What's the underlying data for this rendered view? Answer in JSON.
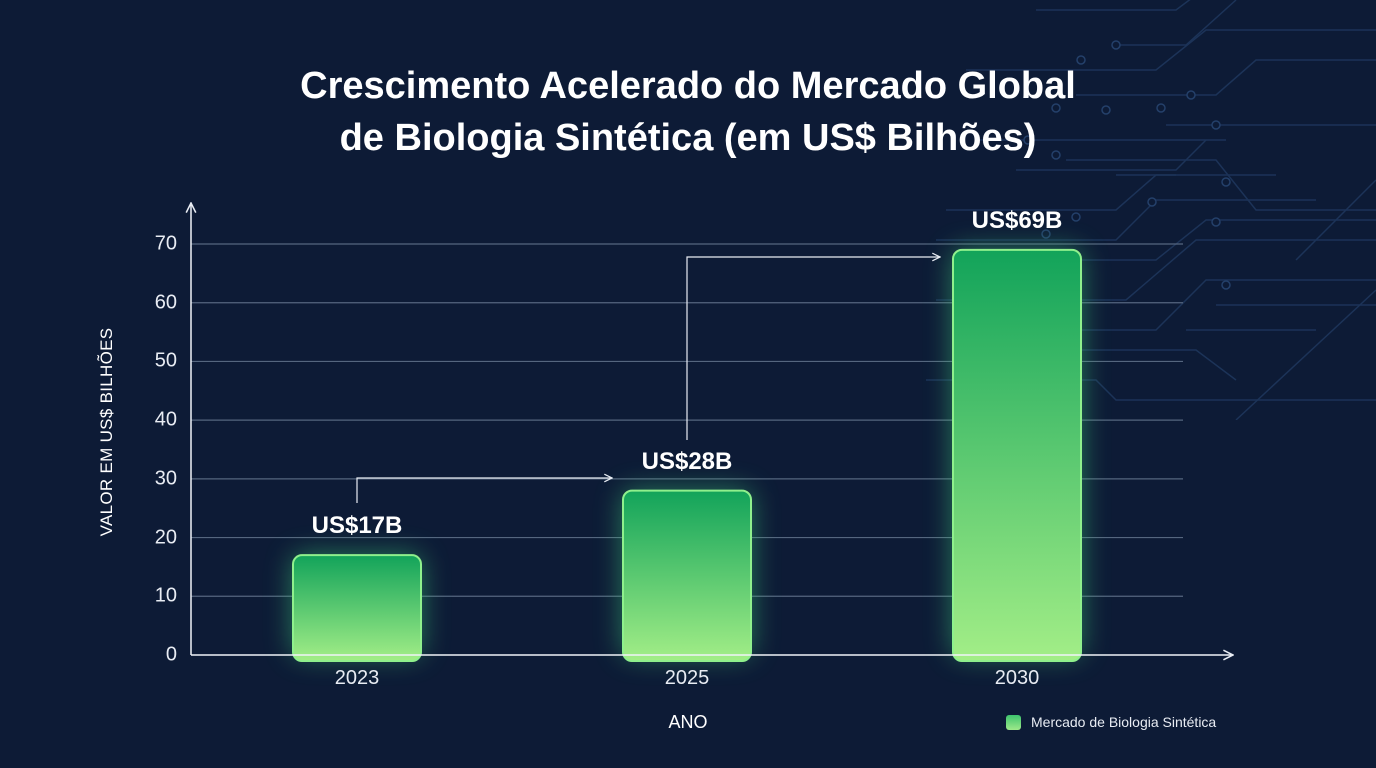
{
  "title": {
    "line1": "Crescimento Acelerado do Mercado Global",
    "line2": "de Biologia Sintética (em US$ Bilhões)"
  },
  "axes": {
    "ylabel": "VALOR EM US$ BILHÕES",
    "xlabel": "ANO",
    "yticks": [
      "0",
      "10",
      "20",
      "30",
      "40",
      "50",
      "60",
      "70"
    ]
  },
  "bars": [
    {
      "year": "2023",
      "value": 17,
      "label": "US$17B"
    },
    {
      "year": "2025",
      "value": 28,
      "label": "US$28B"
    },
    {
      "year": "2030",
      "value": 69,
      "label": "US$69B"
    }
  ],
  "legend": {
    "label": "Mercado de Biologia Sintética",
    "color": "#4ccf75"
  },
  "colors": {
    "background": "#0d1b36",
    "bar_top": "#12a35a",
    "bar_bottom": "#a3ee87",
    "bar_border": "#8ff08c",
    "gridline": "#55667f"
  },
  "chart_data": {
    "type": "bar",
    "title": "Crescimento Acelerado do Mercado Global de Biologia Sintética (em US$ Bilhões)",
    "categories": [
      "2023",
      "2025",
      "2030"
    ],
    "values": [
      17,
      28,
      69
    ],
    "data_labels": [
      "US$17B",
      "US$28B",
      "US$69B"
    ],
    "xlabel": "ANO",
    "ylabel": "VALOR EM US$ BILHÕES",
    "ylim": [
      0,
      70
    ],
    "yticks": [
      0,
      10,
      20,
      30,
      40,
      50,
      60,
      70
    ],
    "grid": true,
    "legend": [
      "Mercado de Biologia Sintética"
    ],
    "legend_position": "bottom-right",
    "annotations": [
      "arrow 2023 → 2025",
      "arrow 2025 → 2030"
    ]
  }
}
